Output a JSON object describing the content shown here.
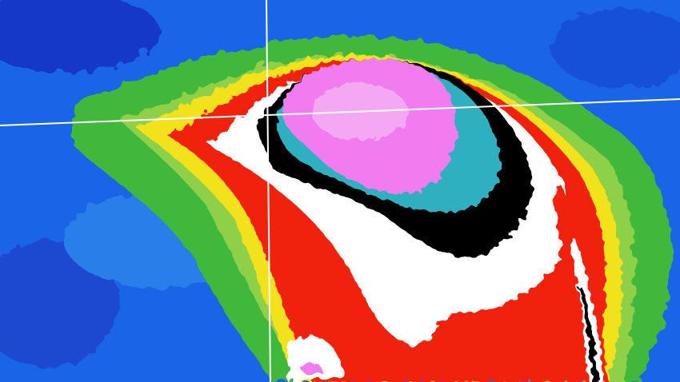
{
  "image": {
    "subject": "enhanced-infrared-satellite-storm",
    "palette": {
      "ocean_blue": "#1a64e8",
      "deep_blue": "#1238c8",
      "green": "#3fb83a",
      "light_green": "#8fd04a",
      "yellow": "#f2e21c",
      "red": "#f0200c",
      "white": "#ffffff",
      "black": "#000000",
      "cyan": "#2fb0c0",
      "magenta": "#f07cf0",
      "grid_line": "#ffffff"
    }
  }
}
